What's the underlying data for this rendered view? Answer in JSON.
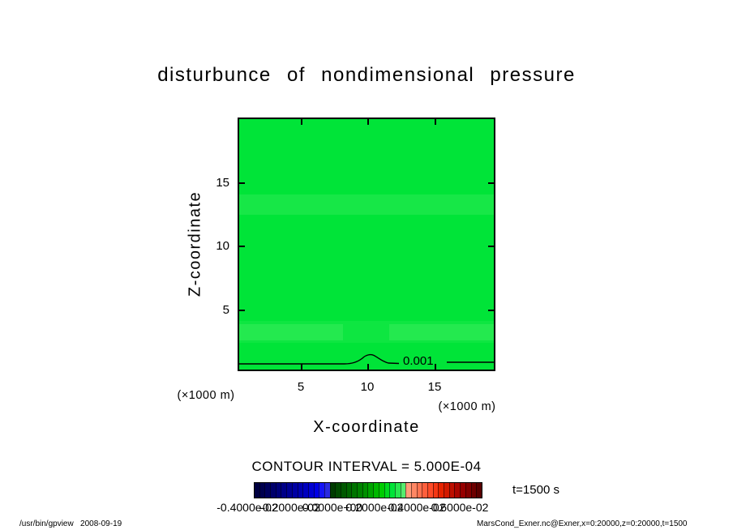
{
  "chart_data": {
    "type": "heatmap",
    "title": "disturbunce of nondimensional pressure",
    "xlabel": "X-coordinate",
    "ylabel": "Z-coordinate",
    "x_unit_label": "(×1000 m)",
    "y_unit_label": "(×1000 m)",
    "x_ticks": [
      "5",
      "10",
      "15"
    ],
    "y_ticks": [
      "15",
      "10",
      "5"
    ],
    "x_range": [
      0,
      20
    ],
    "y_range": [
      0,
      20
    ],
    "grid": false,
    "fill_color": "#00e438",
    "band_color": "#2eea55",
    "contour_label": "0.001",
    "contour_interval_text": "CONTOUR INTERVAL = 5.000E-04",
    "time_label": "t=1500 s",
    "colorbar": {
      "labels": [
        "-0.4000e-02",
        "-0.2000e-02",
        "0.0000e+00",
        "0.2000e-02",
        "0.4000e-02",
        "0.6000e-02"
      ],
      "colors": [
        "#000041",
        "#00004f",
        "#00005d",
        "#00006b",
        "#000079",
        "#000087",
        "#000095",
        "#0000a3",
        "#0000b1",
        "#0000bf",
        "#0000d2",
        "#0000e6",
        "#1414f5",
        "#2a2ae0",
        "#003c00",
        "#004a00",
        "#005800",
        "#006600",
        "#007400",
        "#008200",
        "#009000",
        "#00a400",
        "#00b800",
        "#00cc00",
        "#00da1e",
        "#00e438",
        "#2ae850",
        "#55ec6e",
        "#ff9b78",
        "#ff8764",
        "#ff7350",
        "#ff5f3c",
        "#ff4b28",
        "#f53714",
        "#e62300",
        "#d21900",
        "#be0f00",
        "#aa0500",
        "#960000",
        "#820000",
        "#6e0000",
        "#5a0000"
      ]
    }
  },
  "footer": {
    "left": "/usr/bin/gpview   2008-09-19",
    "right": "MarsCond_Exner.nc@Exner,x=0:20000,z=0:20000,t=1500"
  }
}
